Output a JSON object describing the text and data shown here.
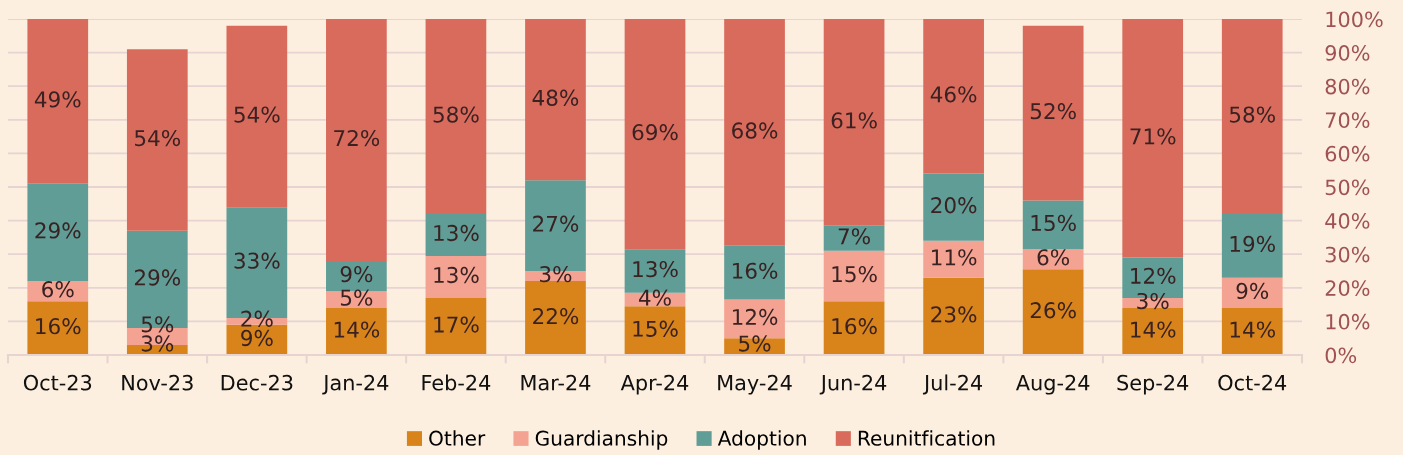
{
  "chart_data": {
    "type": "bar",
    "stacked": true,
    "categories": [
      "Oct-23",
      "Nov-23",
      "Dec-23",
      "Jan-24",
      "Feb-24",
      "Mar-24",
      "Apr-24",
      "May-24",
      "Jun-24",
      "Jul-24",
      "Aug-24",
      "Sep-24",
      "Oct-24"
    ],
    "series": [
      {
        "name": "Other",
        "color": "#d9841a",
        "values": [
          16,
          3,
          9,
          14,
          17,
          22,
          14.5,
          5,
          16,
          23,
          25.5,
          14,
          14
        ],
        "value_labels": [
          "16%",
          "3%",
          "9%",
          "14%",
          "17%",
          "22%",
          "15%",
          "5%",
          "16%",
          "23%",
          "26%",
          "14%",
          "14%"
        ]
      },
      {
        "name": "Guardianship",
        "color": "#f4a393",
        "values": [
          6,
          5,
          2,
          5,
          12.5,
          3,
          4,
          11.5,
          15,
          11,
          6,
          3,
          9
        ],
        "value_labels": [
          "6%",
          "5%",
          "2%",
          "5%",
          "13%",
          "3%",
          "4%",
          "12%",
          "15%",
          "11%",
          "6%",
          "3%",
          "9%"
        ]
      },
      {
        "name": "Adoption",
        "color": "#5f9d96",
        "values": [
          29,
          29,
          33,
          9,
          12.5,
          27,
          13,
          16,
          7.5,
          20,
          14.5,
          12,
          19
        ],
        "value_labels": [
          "29%",
          "29%",
          "33%",
          "9%",
          "13%",
          "27%",
          "13%",
          "16%",
          "7%",
          "20%",
          "15%",
          "12%",
          "19%"
        ]
      },
      {
        "name": "Reunitfication",
        "color": "#d96b5d",
        "values": [
          49,
          54,
          54,
          72,
          58,
          48,
          68.5,
          67.5,
          61.5,
          46,
          52,
          71,
          58
        ],
        "value_labels": [
          "49%",
          "54%",
          "54%",
          "72%",
          "58%",
          "48%",
          "69%",
          "68%",
          "61%",
          "46%",
          "52%",
          "71%",
          "58%"
        ]
      }
    ],
    "ylim": [
      0,
      100
    ],
    "yticks": [
      {
        "value": 0,
        "label": "0%"
      },
      {
        "value": 10,
        "label": "10%"
      },
      {
        "value": 20,
        "label": "20%"
      },
      {
        "value": 30,
        "label": "30%"
      },
      {
        "value": 40,
        "label": "40%"
      },
      {
        "value": 50,
        "label": "50%"
      },
      {
        "value": 60,
        "label": "60%"
      },
      {
        "value": 70,
        "label": "70%"
      },
      {
        "value": 80,
        "label": "80%"
      },
      {
        "value": 90,
        "label": "90%"
      },
      {
        "value": 100,
        "label": "100%"
      }
    ],
    "grid": "y",
    "legend": "bottom"
  }
}
